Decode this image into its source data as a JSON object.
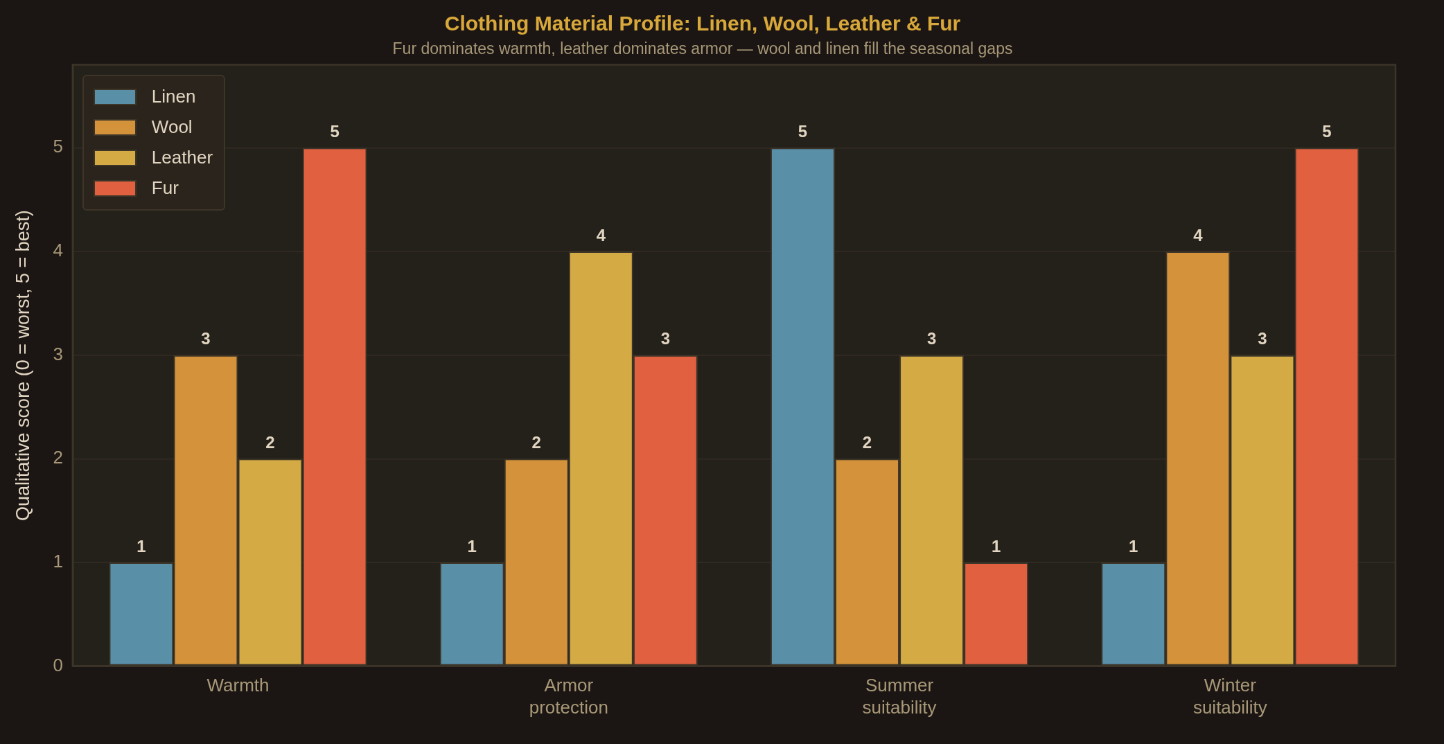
{
  "chart_data": {
    "type": "bar",
    "title": "Clothing Material Profile: Linen, Wool, Leather & Fur",
    "subtitle": "Fur dominates warmth, leather dominates armor — wool and linen fill the seasonal gaps",
    "ylabel": "Qualitative score (0 = worst, 5 = best)",
    "categories": [
      "Warmth",
      "Armor protection",
      "Summer suitability",
      "Winter suitability"
    ],
    "series": [
      {
        "name": "Linen",
        "color": "#5a8fa8",
        "values": [
          1,
          1,
          5,
          1
        ]
      },
      {
        "name": "Wool",
        "color": "#d4933a",
        "values": [
          3,
          2,
          2,
          4
        ]
      },
      {
        "name": "Leather",
        "color": "#d4aa44",
        "values": [
          2,
          4,
          3,
          3
        ]
      },
      {
        "name": "Fur",
        "color": "#e06040",
        "values": [
          5,
          3,
          1,
          5
        ]
      }
    ],
    "ylim": [
      0,
      5.8
    ],
    "yticks": [
      0,
      1,
      2,
      3,
      4,
      5
    ],
    "grid": "y",
    "legend": "top left",
    "data_labels": true
  }
}
